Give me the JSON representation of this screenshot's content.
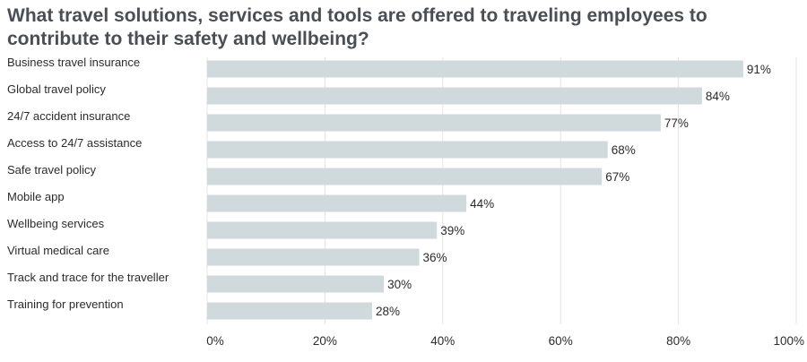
{
  "chart_data": {
    "type": "bar",
    "orientation": "horizontal",
    "title": "What travel solutions, services and tools are offered to traveling employees to contribute to their safety and wellbeing?",
    "categories": [
      "Business travel insurance",
      "Global travel policy",
      "24/7 accident insurance",
      "Access to 24/7 assistance",
      "Safe travel policy",
      "Mobile app",
      "Wellbeing services",
      "Virtual medical care",
      "Track and trace for the traveller",
      "Training for prevention"
    ],
    "values": [
      91,
      84,
      77,
      68,
      67,
      44,
      39,
      36,
      30,
      28
    ],
    "value_labels": [
      "91%",
      "84%",
      "77%",
      "68%",
      "67%",
      "44%",
      "39%",
      "36%",
      "30%",
      "28%"
    ],
    "x_ticks": [
      0,
      20,
      40,
      60,
      80,
      100
    ],
    "x_tick_labels": [
      "0%",
      "20%",
      "40%",
      "60%",
      "80%",
      "100%"
    ],
    "xlim": [
      0,
      100
    ],
    "xlabel": "",
    "ylabel": "",
    "grid": true,
    "legend": "none",
    "colors": {
      "bar": "#d0dadd",
      "grid": "#e4e4e4",
      "title": "#4a4f55",
      "text": "#2b2b2b"
    }
  }
}
